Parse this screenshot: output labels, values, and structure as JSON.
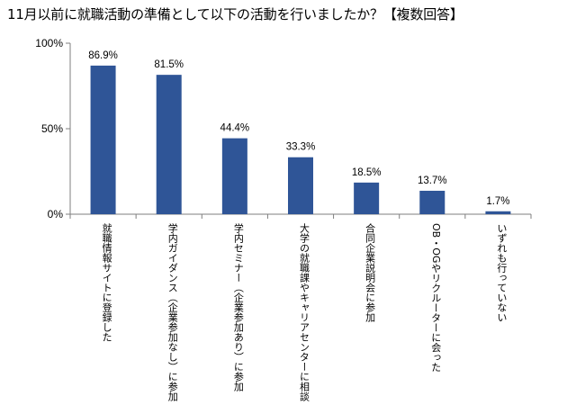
{
  "chart_data": {
    "type": "bar",
    "title": "11月以前に就職活動の準備として以下の活動を行いましたか？【複数回答】",
    "categories": [
      "就職情報サイトに登録した",
      "学内ガイダンス（企業参加なし）に参加",
      "学内セミナー（企業参加あり）に参加",
      "大学の就職課やキャリアセンターに相談",
      "合同企業説明会に参加",
      "OB・OGやリクルーターに会った",
      "いずれも行っていない"
    ],
    "values": [
      86.9,
      81.5,
      44.4,
      33.3,
      18.5,
      13.7,
      1.7
    ],
    "value_labels": [
      "86.9%",
      "81.5%",
      "44.4%",
      "33.3%",
      "18.5%",
      "13.7%",
      "1.7%"
    ],
    "ylim": [
      0,
      100
    ],
    "yticks": [
      0,
      50,
      100
    ],
    "ytick_labels": [
      "0%",
      "50%",
      "100%"
    ],
    "xlabel": "",
    "ylabel": "",
    "legend": "none",
    "grid": false,
    "bar_color": "#2F5597"
  }
}
